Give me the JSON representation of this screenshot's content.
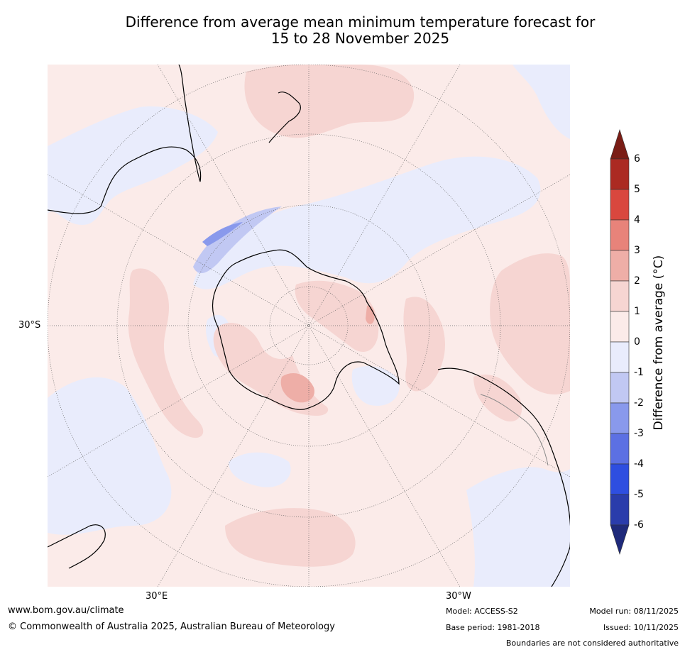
{
  "title_line1": "Difference from average mean minimum temperature forecast for",
  "title_line2": "15 to 28 November 2025",
  "lat_label": "30°S",
  "lon_labels": [
    "30°E",
    "30°W"
  ],
  "colorbar": {
    "title": "Difference from average (°C)",
    "ticks": [
      "6",
      "5",
      "4",
      "3",
      "2",
      "1",
      "0",
      "-1",
      "-2",
      "-3",
      "-4",
      "-5",
      "-6"
    ],
    "colors": [
      "#7a1d16",
      "#ab2a22",
      "#d9473e",
      "#e8837a",
      "#eeaea7",
      "#f6d5d2",
      "#fbebe9",
      "#e9ecfc",
      "#c1c8f3",
      "#8999ec",
      "#5c70e3",
      "#2e4ee0",
      "#2a3cab",
      "#1f2a7b"
    ]
  },
  "footer": {
    "url": "www.bom.gov.au/climate",
    "copyright": "© Commonwealth of Australia 2025, Australian Bureau of Meteorology",
    "model": "Model: ACCESS-S2",
    "base_period": "Base period: 1981-2018",
    "model_run": "Model run: 08/11/2025",
    "issued": "Issued: 10/11/2025",
    "disclaimer": "Boundaries are not considered authoritative"
  }
}
